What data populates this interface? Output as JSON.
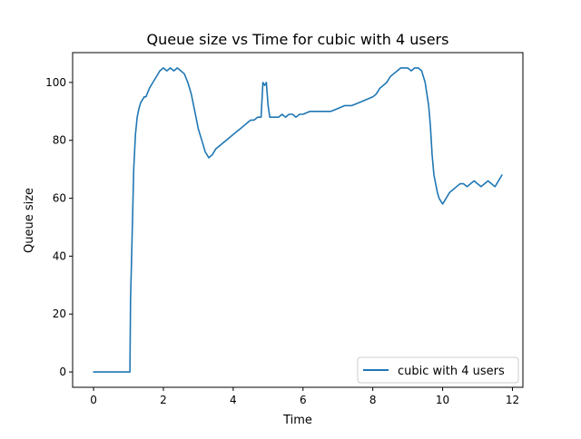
{
  "chart_data": {
    "type": "line",
    "title": "Queue size vs Time for cubic with 4 users",
    "xlabel": "Time",
    "ylabel": "Queue size",
    "xlim": [
      -0.6,
      12.3
    ],
    "ylim": [
      -5.3,
      110.3
    ],
    "xticks": [
      0,
      2,
      4,
      6,
      8,
      10,
      12
    ],
    "yticks": [
      0,
      20,
      40,
      60,
      80,
      100
    ],
    "grid": false,
    "legend_position": "lower-right",
    "series": [
      {
        "name": "cubic with 4 users",
        "color": "#1f77b4",
        "x": [
          0.0,
          0.5,
          1.04,
          1.06,
          1.1,
          1.15,
          1.2,
          1.25,
          1.3,
          1.35,
          1.4,
          1.45,
          1.5,
          1.6,
          1.7,
          1.8,
          1.9,
          2.0,
          2.1,
          2.2,
          2.3,
          2.4,
          2.5,
          2.6,
          2.7,
          2.8,
          2.9,
          3.0,
          3.1,
          3.2,
          3.3,
          3.4,
          3.5,
          3.6,
          3.7,
          3.8,
          3.9,
          4.0,
          4.1,
          4.2,
          4.3,
          4.4,
          4.5,
          4.6,
          4.7,
          4.8,
          4.85,
          4.9,
          4.95,
          5.0,
          5.05,
          5.1,
          5.15,
          5.2,
          5.3,
          5.4,
          5.5,
          5.6,
          5.7,
          5.8,
          5.9,
          6.0,
          6.2,
          6.4,
          6.6,
          6.8,
          7.0,
          7.2,
          7.4,
          7.6,
          7.8,
          8.0,
          8.1,
          8.2,
          8.3,
          8.4,
          8.5,
          8.6,
          8.7,
          8.8,
          8.9,
          9.0,
          9.1,
          9.2,
          9.3,
          9.4,
          9.5,
          9.6,
          9.65,
          9.7,
          9.75,
          9.8,
          9.85,
          9.9,
          9.95,
          10.0,
          10.05,
          10.1,
          10.2,
          10.3,
          10.4,
          10.5,
          10.6,
          10.7,
          10.8,
          10.9,
          11.0,
          11.1,
          11.2,
          11.3,
          11.4,
          11.5,
          11.6,
          11.7
        ],
        "y": [
          0,
          0,
          0,
          25,
          45,
          70,
          82,
          88,
          91,
          93,
          94,
          95,
          95,
          98,
          100,
          102,
          104,
          105,
          104,
          105,
          104,
          105,
          104,
          103,
          100,
          96,
          90,
          84,
          80,
          76,
          74,
          75,
          77,
          78,
          79,
          80,
          81,
          82,
          83,
          84,
          85,
          86,
          87,
          87,
          88,
          88,
          100,
          99,
          100,
          92,
          88,
          88,
          88,
          88,
          88,
          89,
          88,
          89,
          89,
          88,
          89,
          89,
          90,
          90,
          90,
          90,
          91,
          92,
          92,
          93,
          94,
          95,
          96,
          98,
          99,
          100,
          102,
          103,
          104,
          105,
          105,
          105,
          104,
          105,
          105,
          104,
          100,
          92,
          85,
          75,
          68,
          65,
          62,
          60,
          59,
          58,
          59,
          60,
          62,
          63,
          64,
          65,
          65,
          64,
          65,
          66,
          65,
          64,
          65,
          66,
          65,
          64,
          66,
          68
        ]
      }
    ]
  }
}
